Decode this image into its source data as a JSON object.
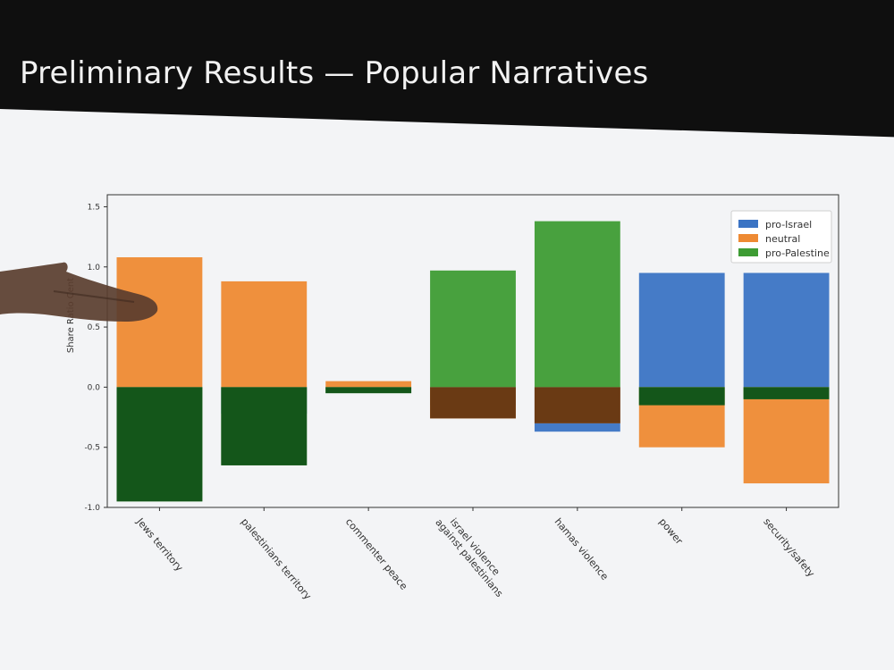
{
  "slide": {
    "title": "Preliminary Results — Popular Narratives"
  },
  "chart_data": {
    "type": "bar",
    "stacked": "diverging",
    "title": "",
    "xlabel": "",
    "ylabel": "Share Ratio Cent",
    "ylim": [
      -1.0,
      1.6
    ],
    "yticks": [
      -1.0,
      -0.5,
      0.0,
      0.5,
      1.0,
      1.5
    ],
    "ytick_labels": [
      "-1.0",
      "-0.5",
      "0.0",
      "0.5",
      "1.0",
      "1.5"
    ],
    "categories": [
      "Jews territory",
      "palestinians territory",
      "commenter peace",
      "israel violence against palestinians",
      "hamas violence",
      "power",
      "security/safety"
    ],
    "category_lines": [
      [
        "Jews territory"
      ],
      [
        "palestinians territory"
      ],
      [
        "commenter peace"
      ],
      [
        "israel violence",
        "against palestinians"
      ],
      [
        "hamas violence"
      ],
      [
        "power"
      ],
      [
        "security/safety"
      ]
    ],
    "series": [
      {
        "name": "pro-Israel",
        "color": "#3b74c4",
        "values": [
          -0.01,
          -0.22,
          -0.01,
          -0.15,
          -0.37,
          0.95,
          0.95
        ]
      },
      {
        "name": "neutral",
        "color": "#ee8a33",
        "values": [
          1.08,
          0.88,
          0.05,
          -0.26,
          -0.3,
          -0.5,
          -0.8
        ]
      },
      {
        "name": "pro-Palestine",
        "color": "#3e9c34",
        "values": [
          -0.95,
          -0.65,
          -0.05,
          0.97,
          1.38,
          -0.15,
          -0.1
        ]
      }
    ],
    "overlap_color": "#14561a",
    "overlap_brown": "#6a3a14",
    "legend": {
      "position": "top-right",
      "labels": [
        "pro-Israel",
        "neutral",
        "pro-Palestine"
      ]
    },
    "grid": false
  }
}
